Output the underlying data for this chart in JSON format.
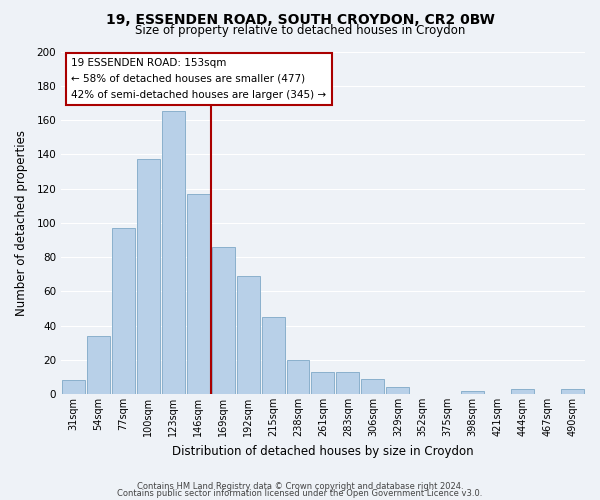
{
  "title": "19, ESSENDEN ROAD, SOUTH CROYDON, CR2 0BW",
  "subtitle": "Size of property relative to detached houses in Croydon",
  "xlabel": "Distribution of detached houses by size in Croydon",
  "ylabel": "Number of detached properties",
  "bar_color": "#b8d0e8",
  "bar_edge_color": "#8ab0cc",
  "bin_labels": [
    "31sqm",
    "54sqm",
    "77sqm",
    "100sqm",
    "123sqm",
    "146sqm",
    "169sqm",
    "192sqm",
    "215sqm",
    "238sqm",
    "261sqm",
    "283sqm",
    "306sqm",
    "329sqm",
    "352sqm",
    "375sqm",
    "398sqm",
    "421sqm",
    "444sqm",
    "467sqm",
    "490sqm"
  ],
  "bar_heights": [
    8,
    34,
    97,
    137,
    165,
    117,
    86,
    69,
    45,
    20,
    13,
    13,
    9,
    4,
    0,
    0,
    2,
    0,
    3,
    0,
    3
  ],
  "vline_color": "#aa0000",
  "annotation_title": "19 ESSENDEN ROAD: 153sqm",
  "annotation_line1": "← 58% of detached houses are smaller (477)",
  "annotation_line2": "42% of semi-detached houses are larger (345) →",
  "annotation_box_color": "#ffffff",
  "annotation_box_edge": "#aa0000",
  "ylim": [
    0,
    200
  ],
  "yticks": [
    0,
    20,
    40,
    60,
    80,
    100,
    120,
    140,
    160,
    180,
    200
  ],
  "footer1": "Contains HM Land Registry data © Crown copyright and database right 2024.",
  "footer2": "Contains public sector information licensed under the Open Government Licence v3.0.",
  "background_color": "#eef2f7",
  "grid_color": "#ffffff",
  "fig_width": 6.0,
  "fig_height": 5.0,
  "title_fontsize": 10,
  "subtitle_fontsize": 8.5
}
